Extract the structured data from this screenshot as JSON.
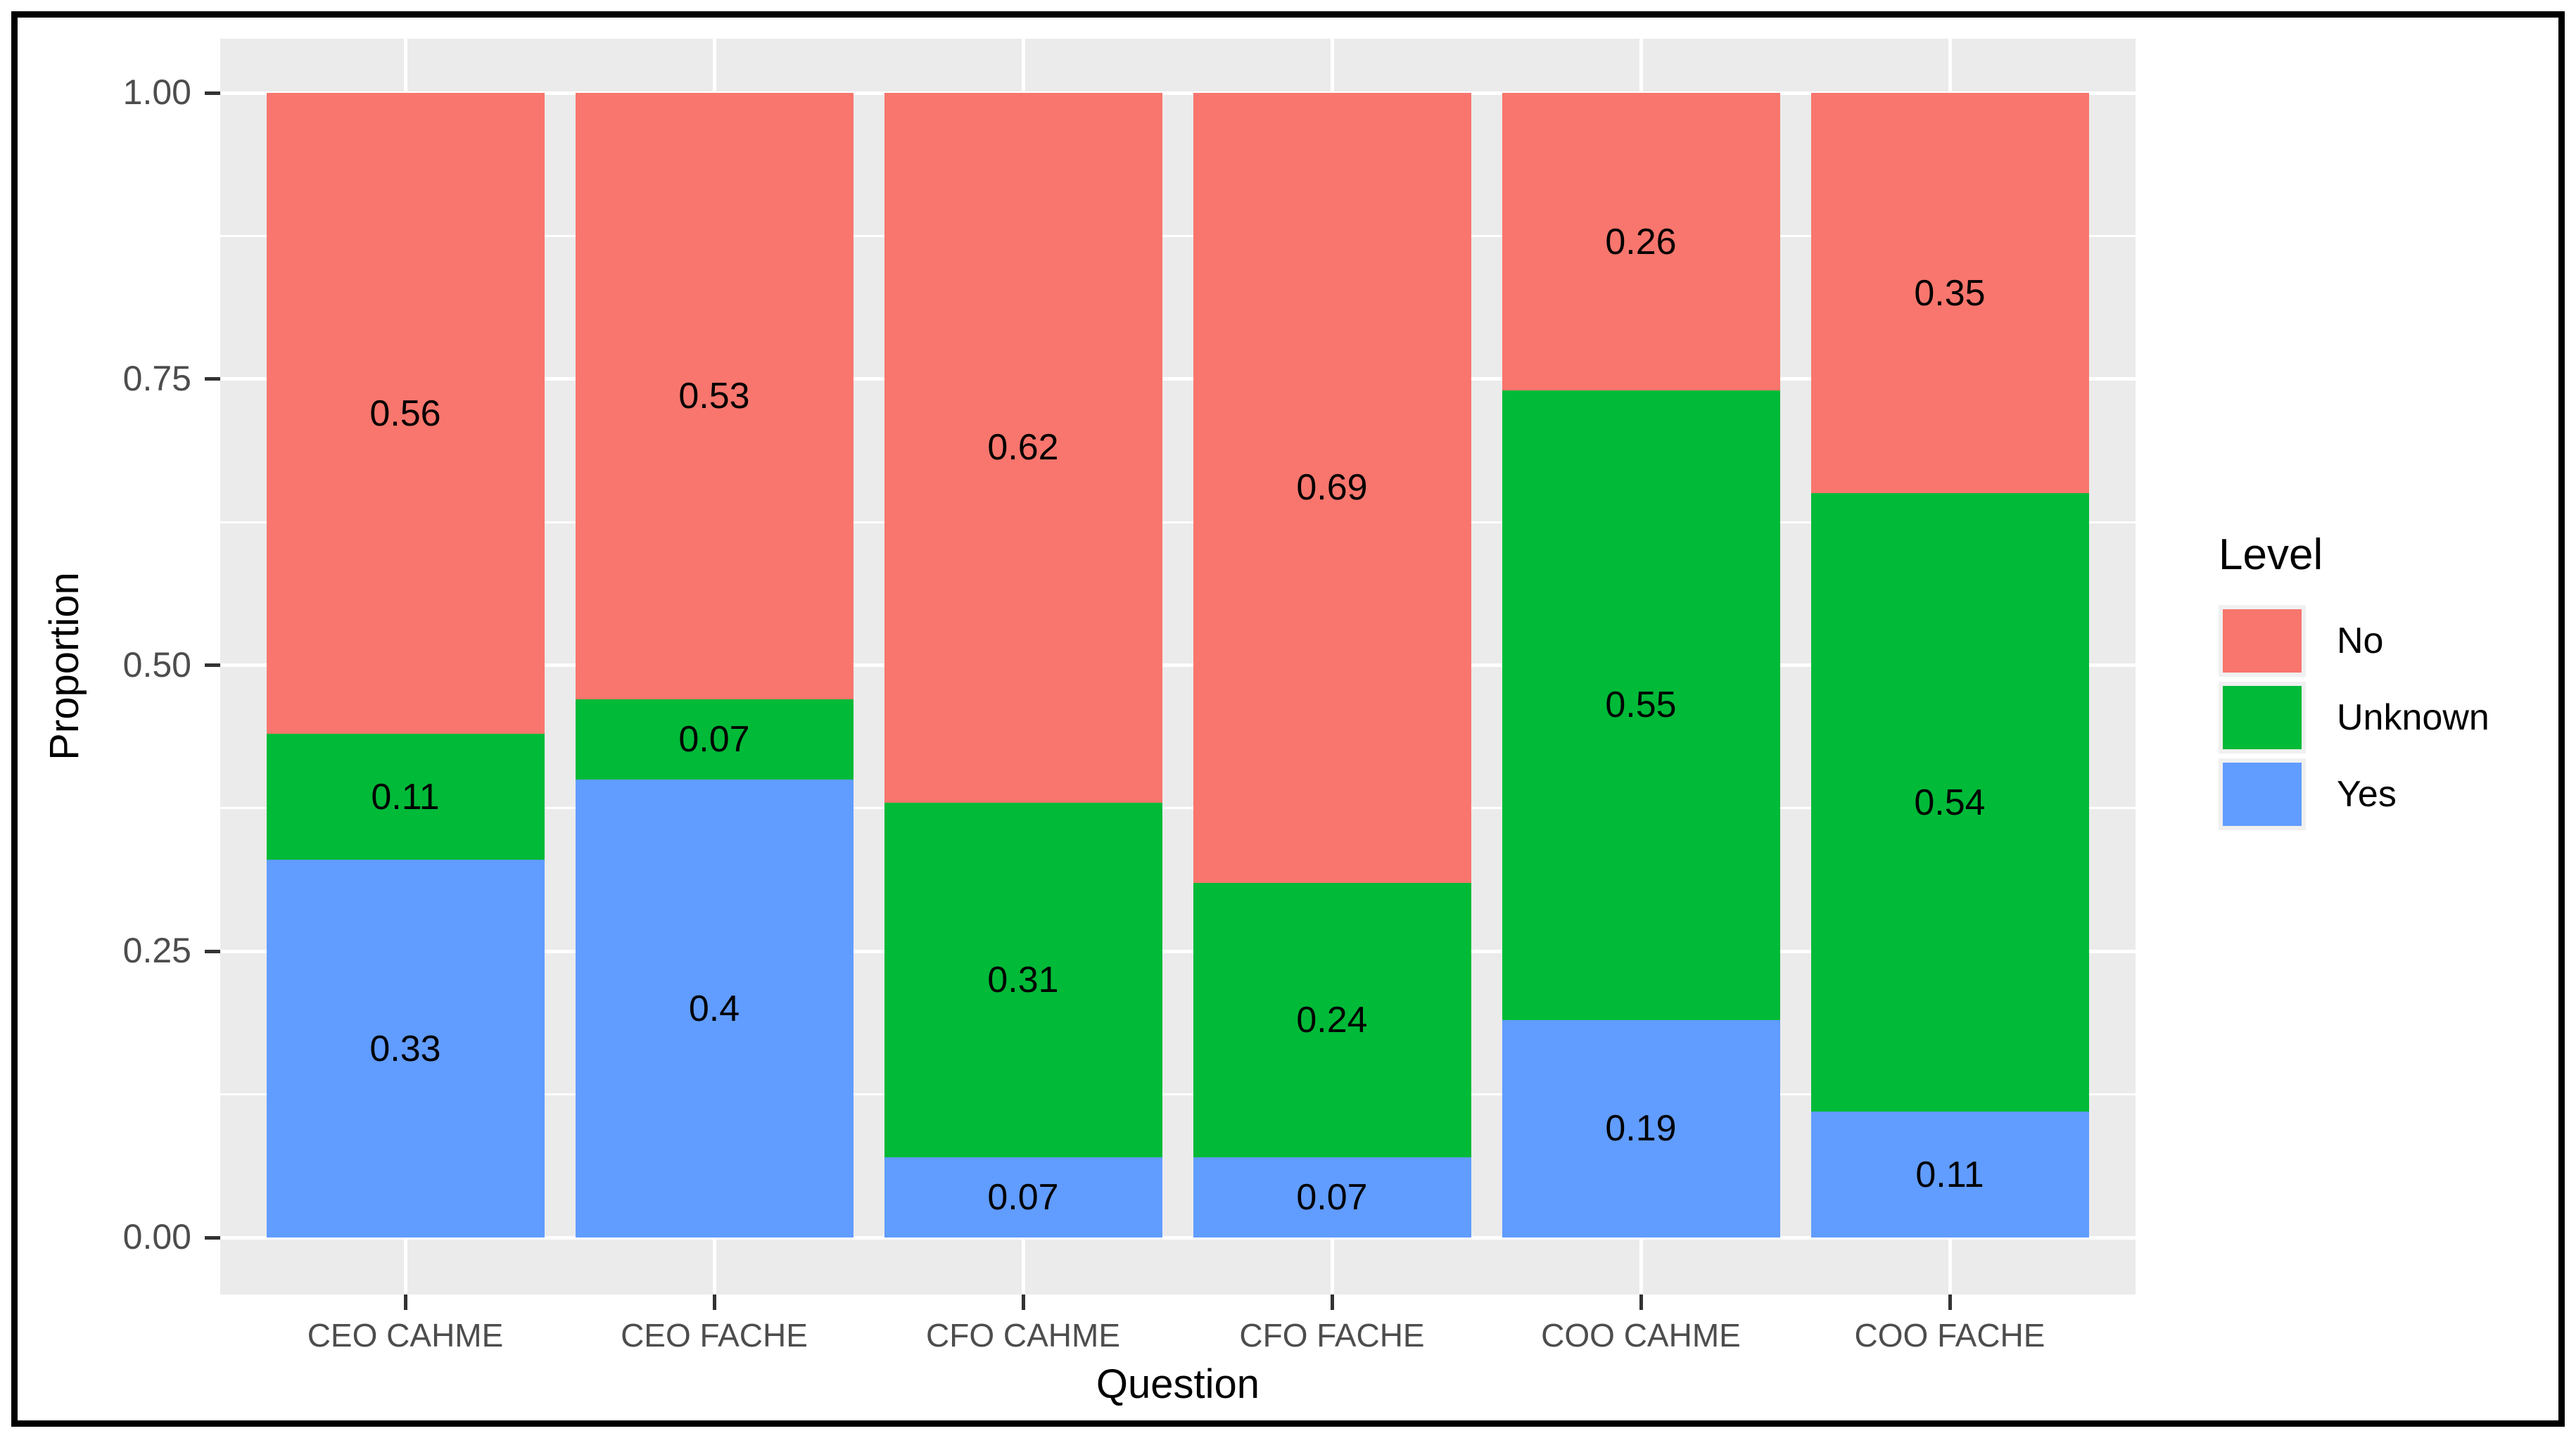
{
  "chart_data": {
    "type": "bar",
    "stacked": true,
    "title": "",
    "xlabel": "Question",
    "ylabel": "Proportion",
    "categories": [
      "CEO CAHME",
      "CEO FACHE",
      "CFO CAHME",
      "CFO FACHE",
      "COO CAHME",
      "COO FACHE"
    ],
    "series": [
      {
        "name": "No",
        "color": "#F8766D",
        "values": [
          0.56,
          0.53,
          0.62,
          0.69,
          0.26,
          0.35
        ]
      },
      {
        "name": "Unknown",
        "color": "#00BA38",
        "values": [
          0.11,
          0.07,
          0.31,
          0.24,
          0.55,
          0.54
        ]
      },
      {
        "name": "Yes",
        "color": "#619CFF",
        "values": [
          0.33,
          0.4,
          0.07,
          0.07,
          0.19,
          0.11
        ]
      }
    ],
    "ylim": [
      0,
      1
    ],
    "y_ticks": [
      {
        "label": "1.00",
        "value": 1
      },
      {
        "label": "0.75",
        "value": 0.75
      },
      {
        "label": "0.50",
        "value": 0.5
      },
      {
        "label": "0.25",
        "value": 0.25
      },
      {
        "label": "0.00",
        "value": 0
      }
    ],
    "y_minor_ticks": [
      0.125,
      0.375,
      0.625,
      0.875
    ],
    "grid": true,
    "legend": {
      "title": "Level",
      "position": "right",
      "entries": [
        "No",
        "Unknown",
        "Yes"
      ]
    },
    "colors": {
      "panel_bg": "#EBEBEB",
      "grid": "#FFFFFF",
      "axis_text": "#4D4D4D",
      "tick_mark": "#333333",
      "bar_label_text": "#000000",
      "frame_border": "#000000"
    }
  }
}
